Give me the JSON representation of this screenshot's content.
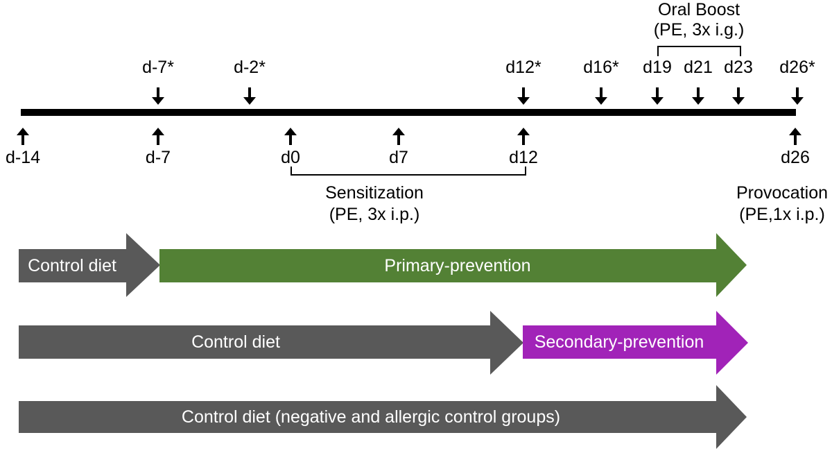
{
  "colors": {
    "gray": "#595959",
    "green": "#538135",
    "purple": "#A123B8",
    "axis": "#000000",
    "text": "#000000",
    "bar_text": "#FFFFFF"
  },
  "timeline": {
    "top_markers": [
      {
        "label": "d-7*"
      },
      {
        "label": "d-2*"
      },
      {
        "label": "d12*"
      },
      {
        "label": "d16*"
      },
      {
        "label": "d19"
      },
      {
        "label": "d21"
      },
      {
        "label": "d23"
      },
      {
        "label": "d26*"
      }
    ],
    "bottom_markers": [
      {
        "label": "d-14"
      },
      {
        "label": "d-7"
      },
      {
        "label": "d0"
      },
      {
        "label": "d7"
      },
      {
        "label": "d12"
      },
      {
        "label": "d26"
      }
    ],
    "annotations": {
      "oral_boost": {
        "title": "Oral Boost",
        "subtitle": "(PE, 3x i.g.)"
      },
      "sensitization": {
        "title": "Sensitization",
        "subtitle": "(PE, 3x i.p.)"
      },
      "provocation": {
        "title": "Provocation",
        "subtitle": "(PE,1x i.p.)"
      }
    }
  },
  "groups": {
    "rows": [
      {
        "name": "primary-prevention-group",
        "segments": [
          {
            "label": "Control diet",
            "color": "gray"
          },
          {
            "label": "Primary-prevention",
            "color": "green"
          }
        ]
      },
      {
        "name": "secondary-prevention-group",
        "segments": [
          {
            "label": "Control diet",
            "color": "gray"
          },
          {
            "label": "Secondary-prevention",
            "color": "purple"
          }
        ]
      },
      {
        "name": "control-group",
        "segments": [
          {
            "label": "Control diet (negative and allergic control groups)",
            "color": "gray"
          }
        ]
      }
    ]
  }
}
